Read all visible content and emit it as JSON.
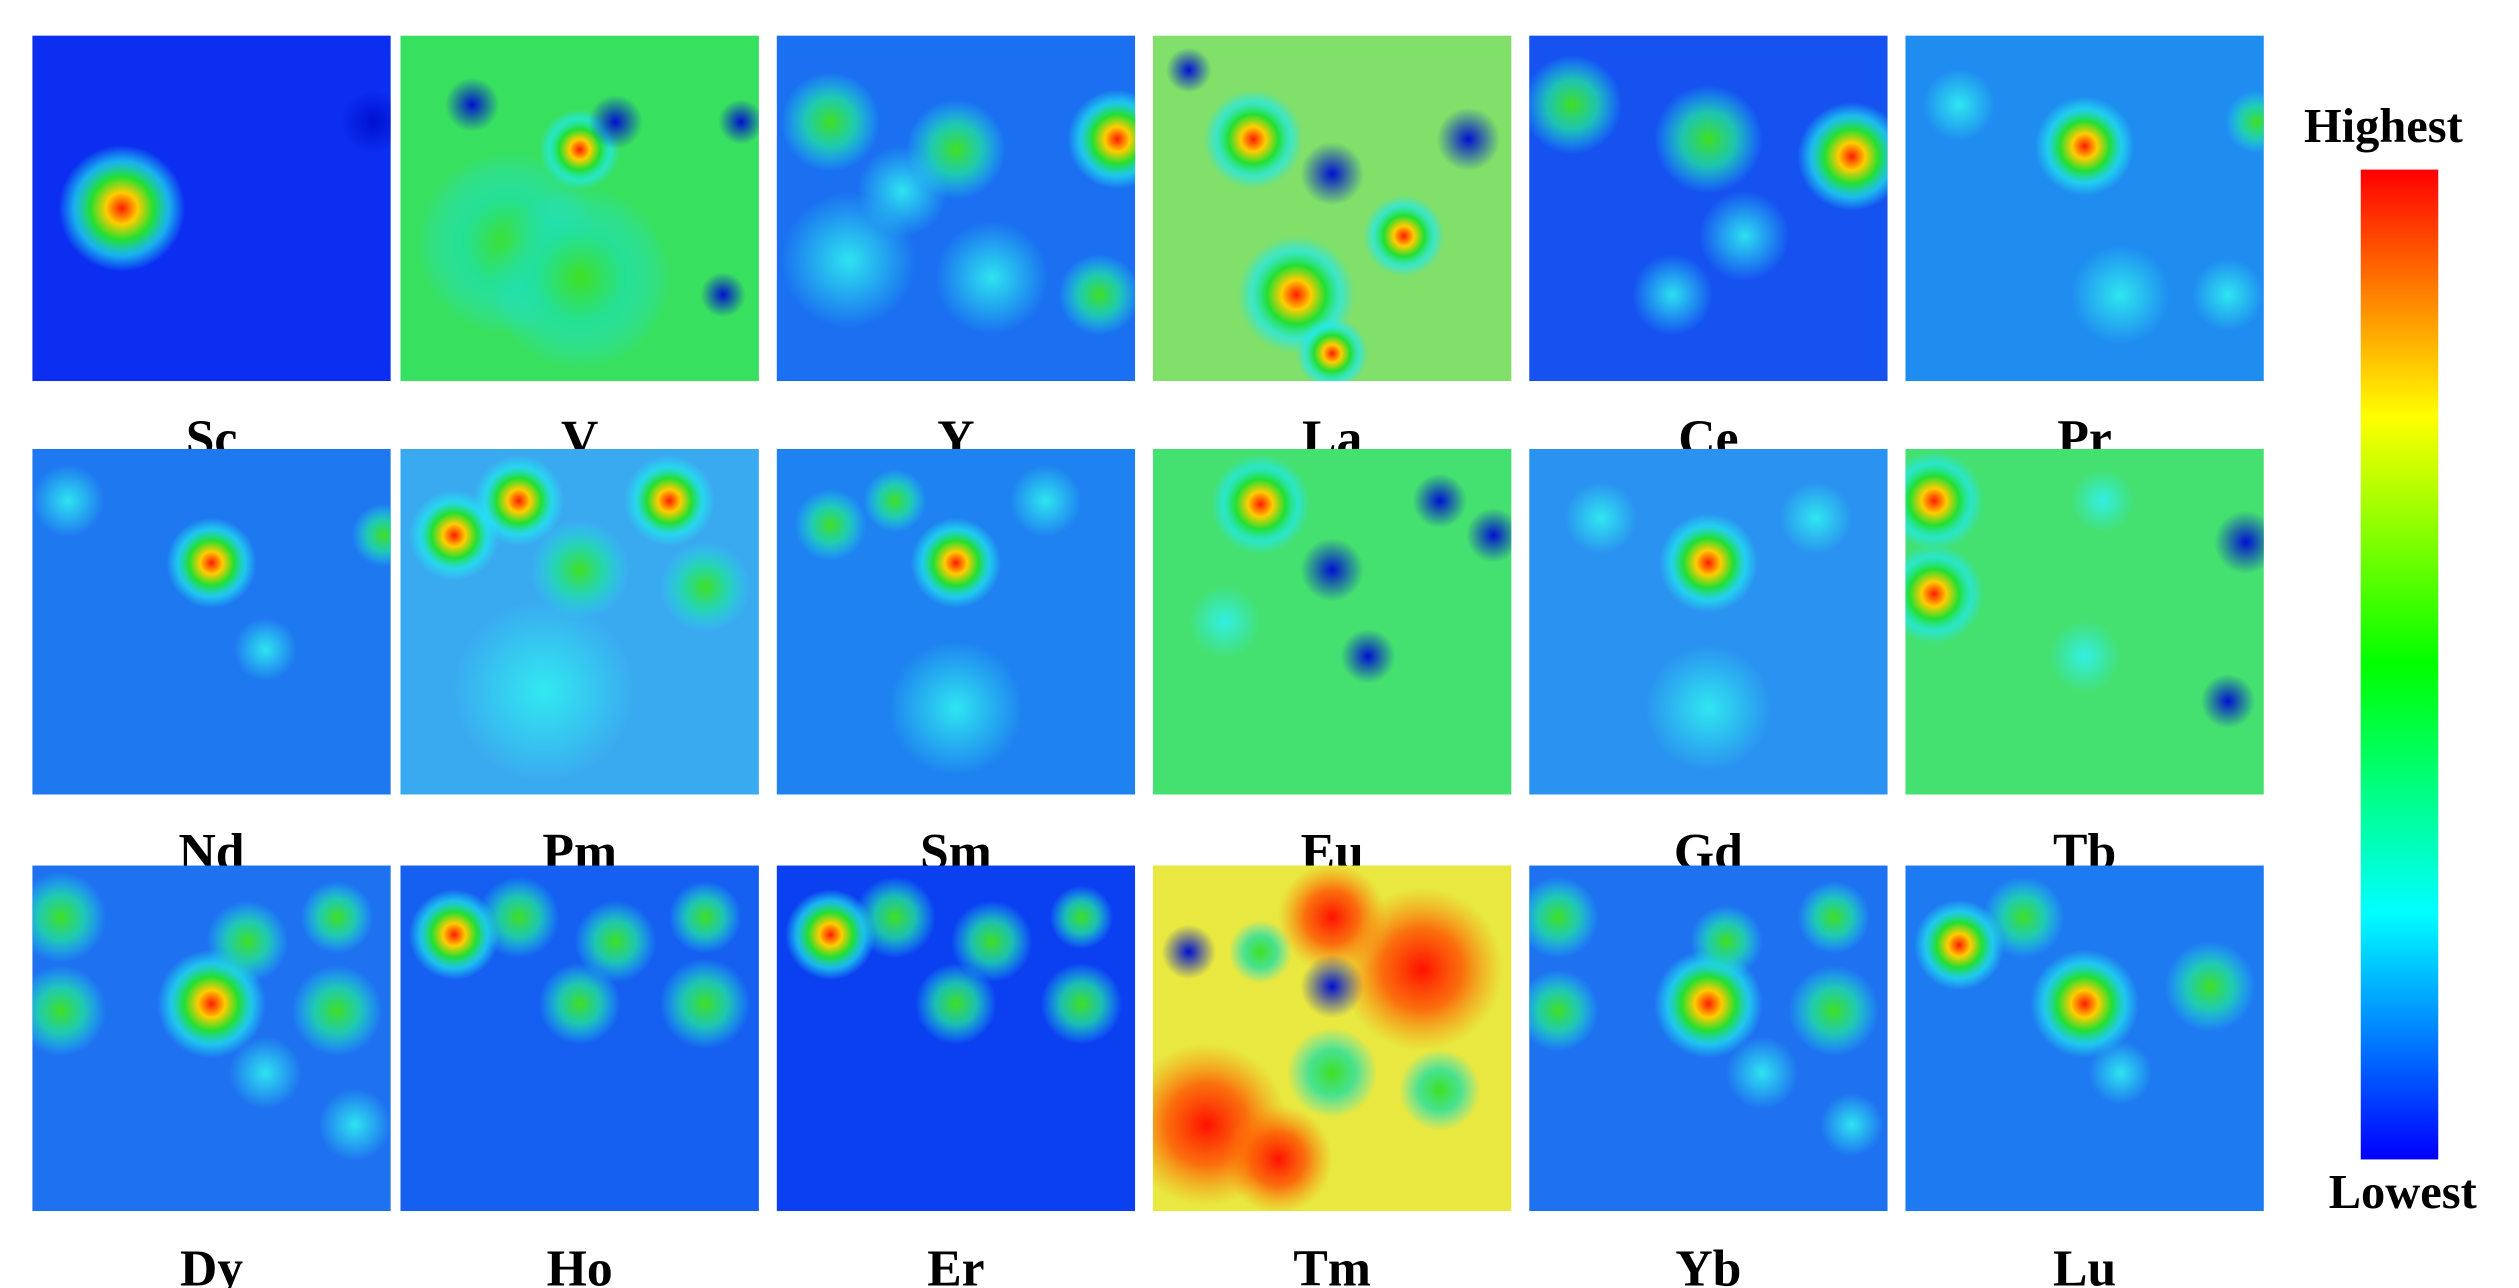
{
  "panels": [
    {
      "label": "Sc"
    },
    {
      "label": "V"
    },
    {
      "label": "Y"
    },
    {
      "label": "La"
    },
    {
      "label": "Ce"
    },
    {
      "label": "Pr"
    },
    {
      "label": "Nd"
    },
    {
      "label": "Pm"
    },
    {
      "label": "Sm"
    },
    {
      "label": "Eu"
    },
    {
      "label": "Gd"
    },
    {
      "label": "Tb"
    },
    {
      "label": "Dy"
    },
    {
      "label": "Ho"
    },
    {
      "label": "Er"
    },
    {
      "label": "Tm"
    },
    {
      "label": "Yb"
    },
    {
      "label": "Lu"
    }
  ],
  "colorbar": {
    "high": "Highest",
    "low": "Lowest"
  }
}
